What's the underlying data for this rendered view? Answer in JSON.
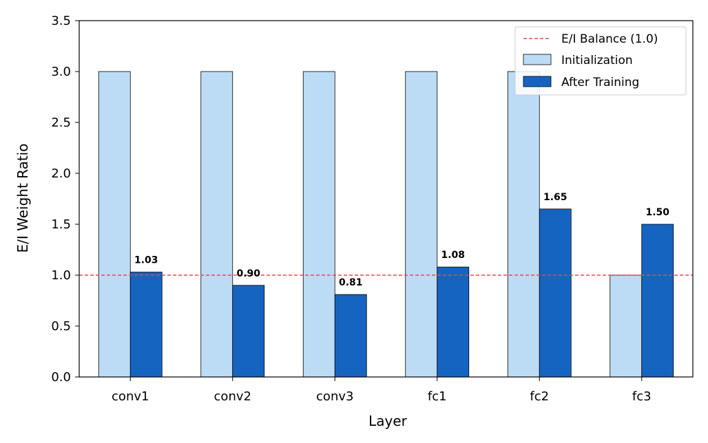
{
  "chart_data": {
    "type": "bar",
    "title": "",
    "xlabel": "Layer",
    "ylabel": "E/I Weight Ratio",
    "categories": [
      "conv1",
      "conv2",
      "conv3",
      "fc1",
      "fc2",
      "fc3"
    ],
    "ylim": [
      0,
      3.5
    ],
    "yticks": [
      "0.0",
      "0.5",
      "1.0",
      "1.5",
      "2.0",
      "2.5",
      "3.0",
      "3.5"
    ],
    "grid": false,
    "legend_position": "top-right",
    "reference_line": {
      "name": "E/I Balance (1.0)",
      "value": 1.0,
      "color": "#e8474b",
      "style": "dashed"
    },
    "series": [
      {
        "name": "Initialization",
        "color": "#bcdcf6",
        "values": [
          3.0,
          3.0,
          3.0,
          3.0,
          3.0,
          1.0
        ],
        "labels": [
          "",
          "",
          "",
          "",
          "",
          ""
        ]
      },
      {
        "name": "After Training",
        "color": "#1565c0",
        "values": [
          1.03,
          0.9,
          0.81,
          1.08,
          1.65,
          1.5
        ],
        "labels": [
          "1.03",
          "0.90",
          "0.81",
          "1.08",
          "1.65",
          "1.50"
        ]
      }
    ]
  }
}
